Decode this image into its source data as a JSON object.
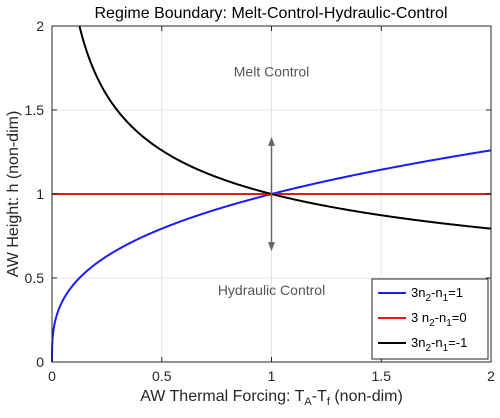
{
  "chart_data": {
    "type": "line",
    "title": "Regime Boundary: Melt-Control-Hydraulic-Control",
    "xlabel": "AW Thermal Forcing: T_A-T_f (non-dim)",
    "xlabel_parts": {
      "main": "AW Thermal Forcing: T",
      "sub1": "A",
      "mid": "-T",
      "sub2": "f",
      "tail": " (non-dim)"
    },
    "ylabel": "AW Height: h (non-dim)",
    "xlim": [
      0,
      2
    ],
    "ylim": [
      0,
      2
    ],
    "xticks": [
      0,
      0.5,
      1,
      1.5,
      2
    ],
    "xtick_labels": [
      "0",
      "0.5",
      "1",
      "1.5",
      "2"
    ],
    "yticks": [
      0,
      0.5,
      1,
      1.5,
      2
    ],
    "ytick_labels": [
      "0",
      "0.5",
      "1",
      "1.5",
      "2"
    ],
    "grid": true,
    "legend_position": "bottom-right",
    "series": [
      {
        "name": "3n2-n1=1",
        "label_parts": {
          "a": "3n",
          "s1": "2",
          "b": "-n",
          "s2": "1",
          "c": "=1"
        },
        "color": "#1a1aff",
        "exponent": 0.333333,
        "x": [
          0,
          0.002,
          0.01,
          0.05,
          0.1,
          0.25,
          0.5,
          0.75,
          1,
          1.25,
          1.5,
          1.75,
          2
        ],
        "y": [
          0,
          0.126,
          0.215,
          0.368,
          0.464,
          0.63,
          0.794,
          0.909,
          1,
          1.077,
          1.145,
          1.205,
          1.26
        ]
      },
      {
        "name": "3 n2-n1=0",
        "label_parts": {
          "a": "3 n",
          "s1": "2",
          "b": "-n",
          "s2": "1",
          "c": "=0"
        },
        "color": "#e31a1a",
        "exponent": 0,
        "x": [
          0,
          2
        ],
        "y": [
          1,
          1
        ]
      },
      {
        "name": "3n2-n1=-1",
        "label_parts": {
          "a": "3n",
          "s1": "2",
          "b": "-n",
          "s2": "1",
          "c": "=-1"
        },
        "color": "#000000",
        "exponent": -0.333333,
        "x": [
          0.125,
          0.25,
          0.5,
          0.75,
          1,
          1.25,
          1.5,
          1.75,
          2
        ],
        "y": [
          2,
          1.587,
          1.26,
          1.101,
          1,
          0.928,
          0.874,
          0.83,
          0.794
        ]
      }
    ],
    "annotations": [
      {
        "text": "Melt Control",
        "x": 1,
        "y": 1.73
      },
      {
        "text": "Hydraulic Control",
        "x": 1,
        "y": 0.43
      }
    ],
    "arrow": {
      "x": 1,
      "y_from": 0.66,
      "y_to": 1.34
    },
    "colors": {
      "arrow": "#666666",
      "grid": "#e3e3e3",
      "axis": "#262626"
    }
  }
}
